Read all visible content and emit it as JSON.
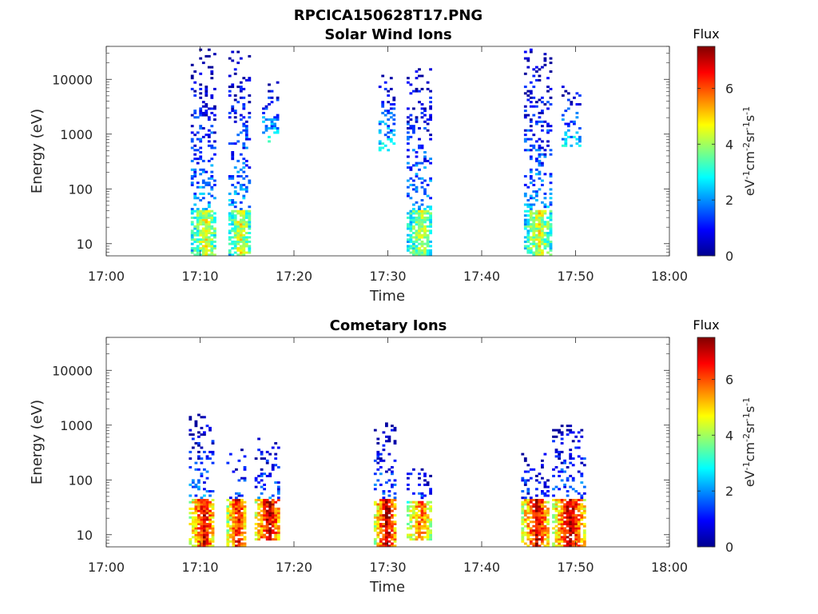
{
  "figure": {
    "filename": "RPCICA150628T17.PNG"
  },
  "panels": [
    {
      "title": "Solar Wind Ions",
      "xlabel": "Time",
      "ylabel": "Energy (eV)",
      "colorbar": {
        "title": "Flux",
        "label_parts": [
          "eV",
          "-1",
          "cm",
          "-2",
          "sr",
          "-1",
          "s",
          "-1"
        ],
        "ticks": [
          "0",
          "2",
          "4",
          "6"
        ]
      }
    },
    {
      "title": "Cometary Ions",
      "xlabel": "Time",
      "ylabel": "Energy (eV)",
      "colorbar": {
        "title": "Flux",
        "label_parts": [
          "eV",
          "-1",
          "cm",
          "-2",
          "sr",
          "-1",
          "s",
          "-1"
        ],
        "ticks": [
          "0",
          "2",
          "4",
          "6"
        ]
      }
    }
  ],
  "chart_data": [
    {
      "type": "heatmap",
      "title": "Solar Wind Ions",
      "xlabel": "Time",
      "ylabel": "Energy (eV)",
      "x_ticks": [
        "17:00",
        "17:10",
        "17:20",
        "17:30",
        "17:40",
        "17:50",
        "18:00"
      ],
      "x_range_minutes": [
        0,
        60
      ],
      "y_scale": "log",
      "y_ticks": [
        10,
        100,
        1000,
        10000
      ],
      "y_range": [
        6,
        40000
      ],
      "colorbar": {
        "title": "Flux",
        "range": [
          0,
          7.5
        ],
        "ticks": [
          0,
          2,
          4,
          6
        ],
        "colormap": "jet"
      },
      "bursts": [
        {
          "t_start": 9.0,
          "t_end": 11.6,
          "e_min": 6,
          "e_max": 35000,
          "core_e_max": 40,
          "core_value": 4.5
        },
        {
          "t_start": 13.0,
          "t_end": 15.2,
          "e_min": 6,
          "e_max": 32000,
          "core_e_max": 40,
          "core_value": 4.5
        },
        {
          "t_start": 16.6,
          "t_end": 18.4,
          "e_min": 700,
          "e_max": 10000,
          "core_e_max": 0,
          "core_value": 0
        },
        {
          "t_start": 29.0,
          "t_end": 30.8,
          "e_min": 500,
          "e_max": 12000,
          "core_e_max": 0,
          "core_value": 0
        },
        {
          "t_start": 32.0,
          "t_end": 34.6,
          "e_min": 6,
          "e_max": 20000,
          "core_e_max": 40,
          "core_value": 4.2
        },
        {
          "t_start": 44.5,
          "t_end": 47.2,
          "e_min": 6,
          "e_max": 37000,
          "core_e_max": 40,
          "core_value": 4.5
        },
        {
          "t_start": 48.5,
          "t_end": 50.5,
          "e_min": 600,
          "e_max": 8000,
          "core_e_max": 0,
          "core_value": 0
        }
      ]
    },
    {
      "type": "heatmap",
      "title": "Cometary Ions",
      "xlabel": "Time",
      "ylabel": "Energy (eV)",
      "x_ticks": [
        "17:00",
        "17:10",
        "17:20",
        "17:30",
        "17:40",
        "17:50",
        "18:00"
      ],
      "x_range_minutes": [
        0,
        60
      ],
      "y_scale": "log",
      "y_ticks": [
        10,
        100,
        1000,
        10000
      ],
      "y_range": [
        6,
        40000
      ],
      "colorbar": {
        "title": "Flux",
        "range": [
          0,
          7.5
        ],
        "ticks": [
          0,
          2,
          4,
          6
        ],
        "colormap": "jet"
      },
      "bursts": [
        {
          "t_start": 8.8,
          "t_end": 11.5,
          "e_min": 6,
          "e_max": 1600,
          "core_e_max": 45,
          "core_value": 6.8
        },
        {
          "t_start": 12.8,
          "t_end": 14.8,
          "e_min": 6,
          "e_max": 400,
          "core_e_max": 45,
          "core_value": 6.8
        },
        {
          "t_start": 15.8,
          "t_end": 18.4,
          "e_min": 8,
          "e_max": 600,
          "core_e_max": 45,
          "core_value": 7.2
        },
        {
          "t_start": 28.5,
          "t_end": 30.8,
          "e_min": 6,
          "e_max": 1100,
          "core_e_max": 45,
          "core_value": 7.2
        },
        {
          "t_start": 32.0,
          "t_end": 34.5,
          "e_min": 8,
          "e_max": 200,
          "core_e_max": 40,
          "core_value": 6.0
        },
        {
          "t_start": 44.2,
          "t_end": 47.0,
          "e_min": 6,
          "e_max": 300,
          "core_e_max": 45,
          "core_value": 7.0
        },
        {
          "t_start": 47.5,
          "t_end": 50.8,
          "e_min": 6,
          "e_max": 1100,
          "core_e_max": 45,
          "core_value": 7.0
        }
      ]
    }
  ]
}
